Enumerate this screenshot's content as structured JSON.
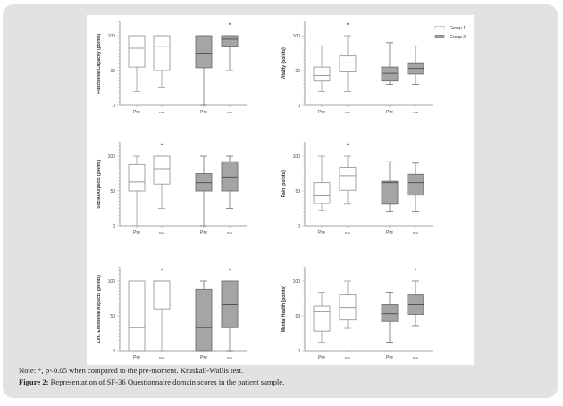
{
  "caption": {
    "note": "Note: *, p<0.05 when compared to the pre-moment. Kruskall-Wallis test.",
    "figure_label": "Figure 2:",
    "figure_text": " Representation of SF-36 Questionnaire domain scores in the patient sample."
  },
  "legend": {
    "entries": [
      {
        "label": "Group 1",
        "color": "#ffffff"
      },
      {
        "label": "Group 2",
        "color": "#a5a5a5"
      }
    ],
    "placement": "top-right"
  },
  "colors": {
    "group1_fill": "#ffffff",
    "group2_fill": "#a5a5a5",
    "stroke": "#777777"
  },
  "chart_data": [
    {
      "type": "boxplot",
      "ylabel": "Functional Capacity (points)",
      "yticks": [
        0,
        50,
        100
      ],
      "ylim": [
        0,
        120
      ],
      "categories": [
        "Pre",
        "Post",
        "Pre",
        "Post"
      ],
      "boxes": [
        {
          "group": "Group 1",
          "moment": "Pre",
          "min": 20,
          "q1": 55,
          "median": 82,
          "q3": 100,
          "max": 100,
          "sig": ""
        },
        {
          "group": "Group 1",
          "moment": "Post",
          "min": 25,
          "q1": 50,
          "median": 85,
          "q3": 100,
          "max": 100,
          "sig": ""
        },
        {
          "group": "Group 2",
          "moment": "Pre",
          "min": 0,
          "q1": 54,
          "median": 75,
          "q3": 100,
          "max": 100,
          "sig": ""
        },
        {
          "group": "Group 2",
          "moment": "Post",
          "min": 50,
          "q1": 84,
          "median": 95,
          "q3": 100,
          "max": 100,
          "sig": "*"
        }
      ]
    },
    {
      "type": "boxplot",
      "ylabel": "Vitality (points)",
      "yticks": [
        0,
        50,
        100
      ],
      "ylim": [
        0,
        120
      ],
      "categories": [
        "Pre",
        "Post",
        "Pre",
        "Post"
      ],
      "boxes": [
        {
          "group": "Group 1",
          "moment": "Pre",
          "min": 20,
          "q1": 35,
          "median": 43,
          "q3": 55,
          "max": 85,
          "sig": ""
        },
        {
          "group": "Group 1",
          "moment": "Post",
          "min": 20,
          "q1": 48,
          "median": 62,
          "q3": 71,
          "max": 100,
          "sig": "*"
        },
        {
          "group": "Group 2",
          "moment": "Pre",
          "min": 30,
          "q1": 35,
          "median": 46,
          "q3": 55,
          "max": 90,
          "sig": ""
        },
        {
          "group": "Group 2",
          "moment": "Post",
          "min": 30,
          "q1": 45,
          "median": 53,
          "q3": 60,
          "max": 85,
          "sig": ""
        }
      ]
    },
    {
      "type": "boxplot",
      "ylabel": "Social Aspects (points)",
      "yticks": [
        0,
        50,
        100
      ],
      "ylim": [
        0,
        120
      ],
      "categories": [
        "Pre",
        "Post",
        "Pre",
        "Post"
      ],
      "boxes": [
        {
          "group": "Group 1",
          "moment": "Pre",
          "min": 0,
          "q1": 50,
          "median": 63,
          "q3": 88,
          "max": 100,
          "sig": ""
        },
        {
          "group": "Group 1",
          "moment": "Post",
          "min": 25,
          "q1": 60,
          "median": 82,
          "q3": 100,
          "max": 100,
          "sig": "*"
        },
        {
          "group": "Group 2",
          "moment": "Pre",
          "min": 0,
          "q1": 50,
          "median": 62,
          "q3": 75,
          "max": 100,
          "sig": ""
        },
        {
          "group": "Group 2",
          "moment": "Post",
          "min": 25,
          "q1": 50,
          "median": 70,
          "q3": 92,
          "max": 100,
          "sig": ""
        }
      ]
    },
    {
      "type": "boxplot",
      "ylabel": "Pain (points)",
      "yticks": [
        0,
        50,
        100
      ],
      "ylim": [
        0,
        120
      ],
      "categories": [
        "Pre",
        "Post",
        "Pre",
        "Post"
      ],
      "boxes": [
        {
          "group": "Group 1",
          "moment": "Pre",
          "min": 22,
          "q1": 32,
          "median": 43,
          "q3": 62,
          "max": 100,
          "sig": ""
        },
        {
          "group": "Group 1",
          "moment": "Post",
          "min": 31,
          "q1": 51,
          "median": 72,
          "q3": 84,
          "max": 100,
          "sig": "*"
        },
        {
          "group": "Group 2",
          "moment": "Pre",
          "min": 20,
          "q1": 31,
          "median": 62,
          "q3": 64,
          "max": 92,
          "sig": ""
        },
        {
          "group": "Group 2",
          "moment": "Post",
          "min": 20,
          "q1": 44,
          "median": 62,
          "q3": 74,
          "max": 90,
          "sig": ""
        }
      ]
    },
    {
      "type": "boxplot",
      "ylabel": "Lim. Emotional Aspects (points)",
      "yticks": [
        0,
        50,
        100
      ],
      "ylim": [
        0,
        120
      ],
      "categories": [
        "Pre",
        "Post",
        "Pre",
        "Post"
      ],
      "boxes": [
        {
          "group": "Group 1",
          "moment": "Pre",
          "min": 0,
          "q1": 0,
          "median": 33,
          "q3": 100,
          "max": 100,
          "sig": ""
        },
        {
          "group": "Group 1",
          "moment": "Post",
          "min": 0,
          "q1": 60,
          "median": 100,
          "q3": 100,
          "max": 100,
          "sig": "*"
        },
        {
          "group": "Group 2",
          "moment": "Pre",
          "min": 0,
          "q1": 0,
          "median": 33,
          "q3": 88,
          "max": 100,
          "sig": ""
        },
        {
          "group": "Group 2",
          "moment": "Post",
          "min": 0,
          "q1": 33,
          "median": 66,
          "q3": 100,
          "max": 100,
          "sig": "*"
        }
      ]
    },
    {
      "type": "boxplot",
      "ylabel": "Mental Health (points)",
      "yticks": [
        0,
        50,
        100
      ],
      "ylim": [
        0,
        120
      ],
      "categories": [
        "Pre",
        "Post",
        "Pre",
        "Post"
      ],
      "boxes": [
        {
          "group": "Group 1",
          "moment": "Pre",
          "min": 12,
          "q1": 28,
          "median": 56,
          "q3": 64,
          "max": 84,
          "sig": ""
        },
        {
          "group": "Group 1",
          "moment": "Post",
          "min": 32,
          "q1": 44,
          "median": 62,
          "q3": 80,
          "max": 100,
          "sig": ""
        },
        {
          "group": "Group 2",
          "moment": "Pre",
          "min": 12,
          "q1": 42,
          "median": 53,
          "q3": 66,
          "max": 84,
          "sig": ""
        },
        {
          "group": "Group 2",
          "moment": "Post",
          "min": 36,
          "q1": 52,
          "median": 66,
          "q3": 80,
          "max": 100,
          "sig": "*"
        }
      ]
    }
  ]
}
